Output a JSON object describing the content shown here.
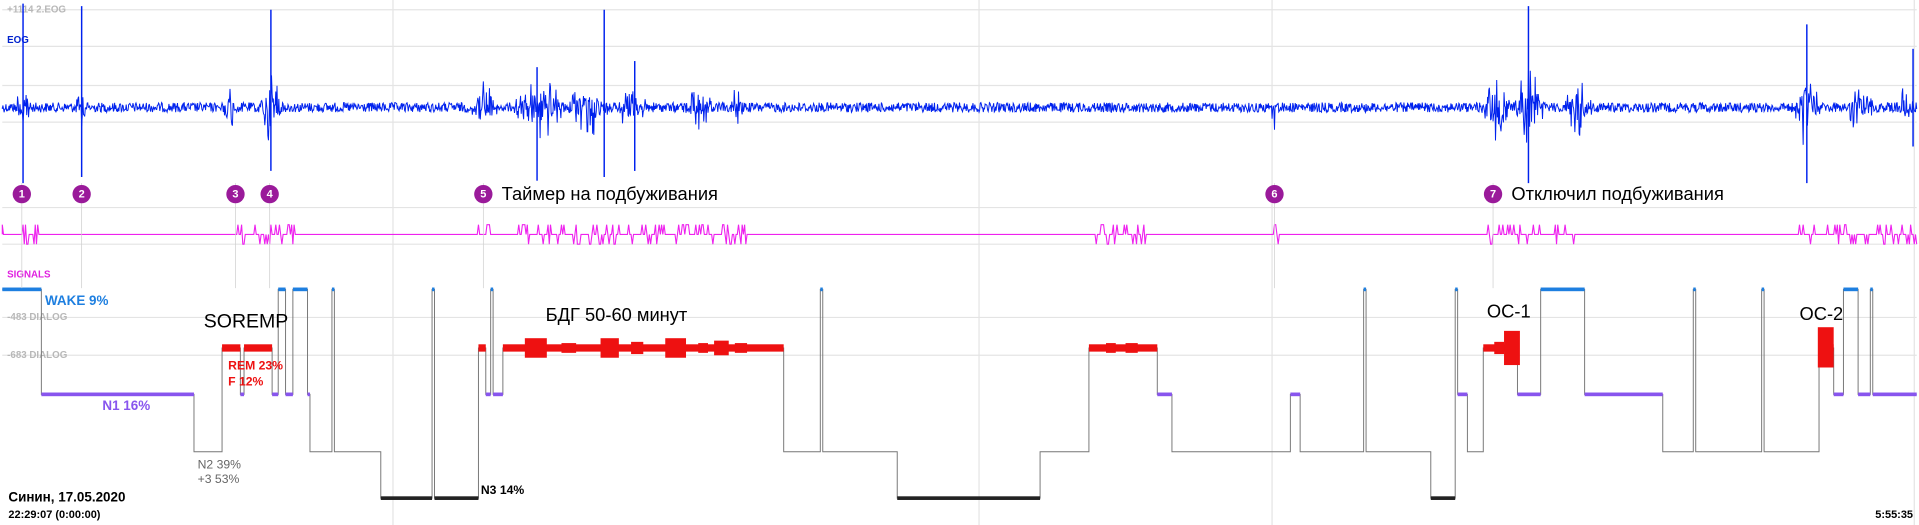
{
  "channels": {
    "eog_top": "+1114 2.EOG",
    "eog": "EOG",
    "signals": "SIGNALS",
    "dialog_a": "-483 DIALOG",
    "dialog_b": "-683 DIALOG"
  },
  "markers": [
    {
      "number": "1"
    },
    {
      "number": "2"
    },
    {
      "number": "3"
    },
    {
      "number": "4"
    },
    {
      "number": "5",
      "label": "Таймер на подбуживания"
    },
    {
      "number": "6"
    },
    {
      "number": "7",
      "label": "Отключил подбуживания"
    }
  ],
  "annotations": {
    "soremp": "SOREMP",
    "rem_block": "БДГ 50-60 минут",
    "oc1": "ОС-1",
    "oc2": "ОС-2"
  },
  "stages": {
    "wake": "WAKE 9%",
    "rem": "REM 23%",
    "f": "F 12%",
    "n1": "N1 16%",
    "n2": "N2 39%",
    "n2_plus3": "+3 53%",
    "n3": "N3 14%"
  },
  "footer": {
    "subject": "Синин, 17.05.2020",
    "start": "22:29:07 (0:00:00)",
    "end": "5:55:35"
  }
}
